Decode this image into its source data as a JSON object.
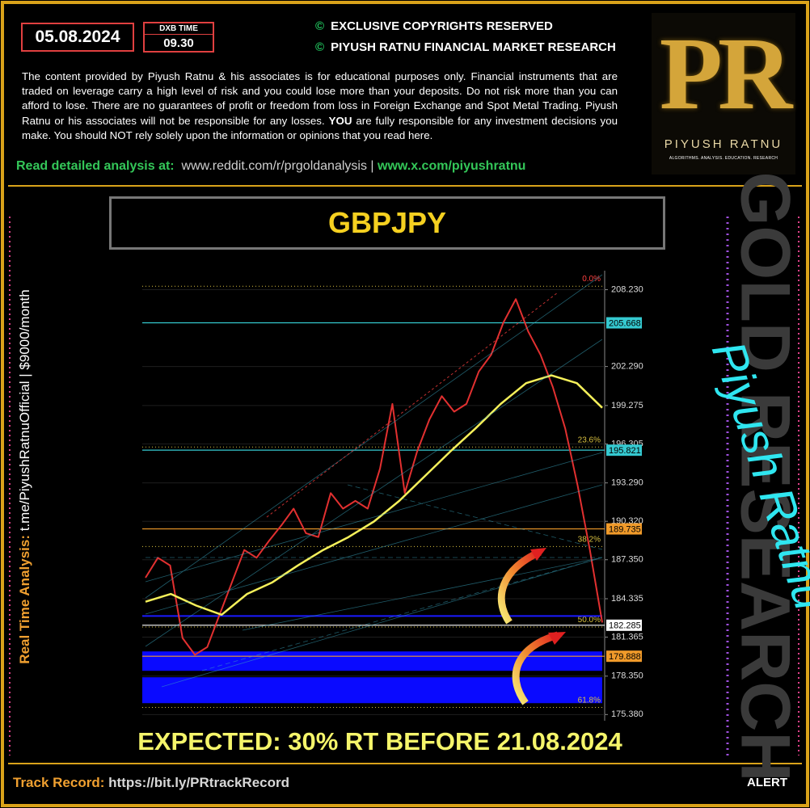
{
  "header": {
    "date": "05.08.2024",
    "time_label": "DXB TIME",
    "time": "09.30",
    "copyright_1": "EXCLUSIVE COPYRIGHTS RESERVED",
    "copyright_2": "PIYUSH RATNU FINANCIAL MARKET RESEARCH",
    "copyright_symbol": "©"
  },
  "disclaimer": {
    "before": "The content provided by Piyush Ratnu & his associates is for educational purposes only. Financial instruments that are traded on leverage carry a high level of risk and you could lose more than your deposits. Do not risk more than you can afford to lose. There are no guarantees of profit or freedom from loss in Foreign Exchange and Spot Metal Trading. Piyush Ratnu or his associates will not be responsible for any losses.",
    "emphasis": "YOU",
    "after": "are fully responsible for any investment decisions you make. You should NOT rely solely upon the information or opinions that you read here."
  },
  "links": {
    "label": "Read detailed analysis at:",
    "reddit": "www.reddit.com/r/prgoldanalysis",
    "separator": "|",
    "x": "www.x.com/piyushratnu"
  },
  "logo": {
    "letters": "PR",
    "name": "PIYUSH RATNU",
    "tagline": "ALGORITHMS. ANALYSIS. EDUCATION. RESEARCH"
  },
  "side_left": {
    "label": "Real Time Analysis:",
    "text": "t.me/PiyushRatnuOfficial | $9000/month"
  },
  "side_right": {
    "watermark": "GOLD RESEARCH",
    "signature": "Piyush Ratnu"
  },
  "chart_data": {
    "type": "line",
    "title": "GBPJPY",
    "ylim": [
      174.9,
      209.7
    ],
    "yticks": [
      {
        "value": 208.23,
        "label": "208.230"
      },
      {
        "value": 202.29,
        "label": "202.290"
      },
      199.275,
      196.305,
      {
        "value": 193.29,
        "label": "193.290"
      },
      {
        "value": 190.32,
        "label": "190.320"
      },
      {
        "value": 187.35,
        "label": "187.350"
      },
      184.335,
      181.365,
      {
        "value": 178.35,
        "label": "178.350"
      },
      {
        "value": 175.38,
        "label": "175.380"
      }
    ],
    "grid": true,
    "series": [
      {
        "name": "GBPJPY",
        "color": "#e23030",
        "values": [
          185.96,
          187.5,
          186.9,
          181.3,
          180.0,
          180.6,
          183.1,
          185.6,
          188.1,
          187.5,
          188.8,
          190.0,
          191.3,
          189.4,
          189.1,
          192.5,
          191.3,
          191.9,
          191.3,
          194.4,
          199.4,
          192.5,
          195.7,
          198.2,
          200.0,
          198.8,
          199.4,
          201.9,
          203.2,
          205.7,
          207.5,
          205.0,
          203.2,
          200.7,
          197.5,
          193.1,
          188.1,
          182.5
        ]
      },
      {
        "name": "MA",
        "color": "#f5f05a",
        "values": [
          184.1,
          184.7,
          183.8,
          183.1,
          184.7,
          185.6,
          186.9,
          188.1,
          189.1,
          190.3,
          191.9,
          193.8,
          195.7,
          197.5,
          199.4,
          201.0,
          201.6,
          201.0,
          199.1
        ]
      }
    ],
    "levels": [
      {
        "value": 205.668,
        "color": "#35c9d0"
      },
      {
        "value": 195.821,
        "color": "#35c9d0"
      },
      {
        "value": 189.735,
        "color": "#f09a2a"
      },
      {
        "value": 182.285,
        "color": "#ffffff"
      },
      {
        "value": 179.888,
        "color": "#f09a2a"
      }
    ],
    "support_line": {
      "value": 183.0,
      "color": "#1a1aff"
    },
    "zones": [
      [
        178.76,
        180.26
      ],
      [
        176.26,
        178.26
      ]
    ],
    "zone_color": "#0a0aff",
    "fib": {
      "high": 208.5,
      "low": 155.8,
      "color": "#d8c040",
      "levels": [
        {
          "value": 0,
          "label": "0.0%"
        },
        {
          "value": 23.6,
          "label": "23.6%"
        },
        {
          "value": 38.2,
          "label": "38.2%"
        },
        {
          "value": 50,
          "label": "50.0%"
        },
        {
          "value": 61.8,
          "label": "61.8%"
        }
      ]
    }
  },
  "footer": {
    "expected": "EXPECTED: 30% RT BEFORE  21.08.2024",
    "track_label": "Track Record:",
    "track_url": "https://bit.ly/PRtrackRecord",
    "alert": "ALERT"
  }
}
